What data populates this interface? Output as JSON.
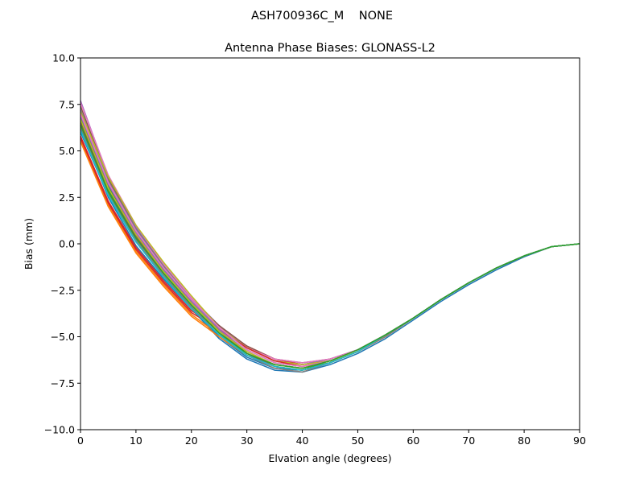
{
  "figure": {
    "suptitle": "ASH700936C_M    NONE"
  },
  "chart_data": {
    "type": "line",
    "title": "Antenna Phase Biases: GLONASS-L2",
    "xlabel": "Elvation angle (degrees)",
    "ylabel": "Bias (mm)",
    "xlim": [
      0,
      90
    ],
    "ylim": [
      -10,
      10
    ],
    "xticks": [
      0,
      10,
      20,
      30,
      40,
      50,
      60,
      70,
      80,
      90
    ],
    "yticks": [
      -10.0,
      -7.5,
      -5.0,
      -2.5,
      0.0,
      2.5,
      5.0,
      7.5,
      10.0
    ],
    "ytick_labels": [
      "−10.0",
      "−7.5",
      "−5.0",
      "−2.5",
      "0.0",
      "2.5",
      "5.0",
      "7.5",
      "10.0"
    ],
    "grid": false,
    "legend": "none",
    "x": [
      0,
      5,
      10,
      15,
      20,
      25,
      30,
      35,
      40,
      45,
      50,
      55,
      60,
      65,
      70,
      75,
      80,
      85,
      90
    ],
    "series": [
      {
        "color": "#1f77b4",
        "values": [
          6.2,
          2.5,
          -0.1,
          -1.9,
          -3.5,
          -5.1,
          -6.2,
          -6.8,
          -6.9,
          -6.5,
          -5.9,
          -5.1,
          -4.1,
          -3.1,
          -2.2,
          -1.4,
          -0.7,
          -0.15,
          0.0
        ]
      },
      {
        "color": "#ff7f0e",
        "values": [
          5.6,
          2.1,
          -0.4,
          -2.2,
          -3.8,
          -4.9,
          -5.9,
          -6.5,
          -6.7,
          -6.4,
          -5.8,
          -5.0,
          -4.0,
          -3.0,
          -2.1,
          -1.3,
          -0.65,
          -0.15,
          0.0
        ]
      },
      {
        "color": "#2ca02c",
        "values": [
          6.6,
          2.9,
          0.4,
          -1.5,
          -3.2,
          -4.7,
          -5.8,
          -6.5,
          -6.7,
          -6.4,
          -5.8,
          -4.9,
          -4.0,
          -3.0,
          -2.1,
          -1.3,
          -0.65,
          -0.15,
          0.0
        ]
      },
      {
        "color": "#d62728",
        "values": [
          5.8,
          2.3,
          -0.2,
          -2.0,
          -3.6,
          -4.5,
          -5.5,
          -6.2,
          -6.5,
          -6.3,
          -5.8,
          -4.9,
          -4.0,
          -3.0,
          -2.1,
          -1.3,
          -0.65,
          -0.15,
          0.0
        ]
      },
      {
        "color": "#9467bd",
        "values": [
          7.7,
          3.6,
          0.9,
          -1.1,
          -2.9,
          -4.4,
          -5.6,
          -6.3,
          -6.5,
          -6.2,
          -5.7,
          -4.9,
          -4.0,
          -3.0,
          -2.1,
          -1.3,
          -0.65,
          -0.15,
          0.0
        ]
      },
      {
        "color": "#8c564b",
        "values": [
          7.4,
          3.5,
          0.8,
          -1.2,
          -3.0,
          -4.4,
          -5.5,
          -6.2,
          -6.4,
          -6.2,
          -5.7,
          -4.9,
          -4.0,
          -3.0,
          -2.1,
          -1.3,
          -0.65,
          -0.15,
          0.0
        ]
      },
      {
        "color": "#e377c2",
        "values": [
          7.6,
          3.7,
          1.0,
          -1.1,
          -2.9,
          -4.5,
          -5.6,
          -6.2,
          -6.4,
          -6.2,
          -5.7,
          -4.9,
          -4.0,
          -3.0,
          -2.1,
          -1.3,
          -0.65,
          -0.15,
          0.0
        ]
      },
      {
        "color": "#7f7f7f",
        "values": [
          7.2,
          3.4,
          0.8,
          -1.2,
          -3.0,
          -4.5,
          -5.7,
          -6.4,
          -6.6,
          -6.3,
          -5.8,
          -4.9,
          -4.0,
          -3.0,
          -2.1,
          -1.3,
          -0.65,
          -0.15,
          0.0
        ]
      },
      {
        "color": "#bcbd22",
        "values": [
          7.1,
          3.6,
          1.0,
          -1.0,
          -2.8,
          -4.5,
          -5.6,
          -6.3,
          -6.5,
          -6.3,
          -5.8,
          -4.9,
          -4.0,
          -3.0,
          -2.1,
          -1.3,
          -0.65,
          -0.15,
          0.0
        ]
      },
      {
        "color": "#17becf",
        "values": [
          6.4,
          2.8,
          0.3,
          -1.6,
          -3.3,
          -4.8,
          -6.0,
          -6.6,
          -6.8,
          -6.4,
          -5.8,
          -4.9,
          -4.0,
          -3.0,
          -2.1,
          -1.3,
          -0.65,
          -0.15,
          0.0
        ]
      },
      {
        "color": "#1f77b4",
        "values": [
          6.0,
          2.6,
          0.1,
          -1.8,
          -3.4,
          -5.0,
          -6.1,
          -6.7,
          -6.8,
          -6.4,
          -5.8,
          -5.0,
          -4.0,
          -3.0,
          -2.1,
          -1.3,
          -0.65,
          -0.15,
          0.0
        ]
      },
      {
        "color": "#ff7f0e",
        "values": [
          5.5,
          2.0,
          -0.5,
          -2.3,
          -3.9,
          -5.0,
          -6.0,
          -6.6,
          -6.8,
          -6.4,
          -5.8,
          -5.0,
          -4.0,
          -3.0,
          -2.1,
          -1.3,
          -0.65,
          -0.15,
          0.0
        ]
      },
      {
        "color": "#2ca02c",
        "values": [
          6.8,
          3.1,
          0.5,
          -1.4,
          -3.1,
          -4.6,
          -5.9,
          -6.6,
          -6.8,
          -6.4,
          -5.8,
          -4.9,
          -4.0,
          -3.0,
          -2.1,
          -1.3,
          -0.65,
          -0.15,
          0.0
        ]
      },
      {
        "color": "#d62728",
        "values": [
          5.7,
          2.2,
          -0.3,
          -2.1,
          -3.7,
          -4.6,
          -5.6,
          -6.3,
          -6.6,
          -6.3,
          -5.8,
          -4.9,
          -4.0,
          -3.0,
          -2.1,
          -1.3,
          -0.65,
          -0.15,
          0.0
        ]
      },
      {
        "color": "#9467bd",
        "values": [
          6.9,
          3.2,
          0.6,
          -1.4,
          -3.1,
          -4.6,
          -5.8,
          -6.5,
          -6.7,
          -6.3,
          -5.8,
          -4.9,
          -4.0,
          -3.0,
          -2.1,
          -1.3,
          -0.65,
          -0.15,
          0.0
        ]
      },
      {
        "color": "#8c564b",
        "values": [
          6.5,
          3.0,
          0.4,
          -1.5,
          -3.2,
          -4.7,
          -5.9,
          -6.6,
          -6.8,
          -6.4,
          -5.8,
          -4.9,
          -4.0,
          -3.0,
          -2.1,
          -1.3,
          -0.65,
          -0.15,
          0.0
        ]
      },
      {
        "color": "#e377c2",
        "values": [
          7.0,
          3.3,
          0.7,
          -1.3,
          -3.0,
          -4.5,
          -5.7,
          -6.4,
          -6.6,
          -6.3,
          -5.8,
          -4.9,
          -4.0,
          -3.0,
          -2.1,
          -1.3,
          -0.65,
          -0.15,
          0.0
        ]
      },
      {
        "color": "#7f7f7f",
        "values": [
          6.3,
          2.7,
          0.2,
          -1.7,
          -3.4,
          -4.9,
          -6.0,
          -6.7,
          -6.9,
          -6.4,
          -5.8,
          -5.0,
          -4.0,
          -3.0,
          -2.1,
          -1.3,
          -0.65,
          -0.15,
          0.0
        ]
      },
      {
        "color": "#bcbd22",
        "values": [
          6.7,
          3.0,
          0.5,
          -1.5,
          -3.2,
          -4.7,
          -5.8,
          -6.5,
          -6.7,
          -6.3,
          -5.8,
          -4.9,
          -4.0,
          -3.0,
          -2.1,
          -1.3,
          -0.65,
          -0.15,
          0.0
        ]
      },
      {
        "color": "#17becf",
        "values": [
          6.1,
          2.6,
          0.1,
          -1.8,
          -3.5,
          -4.9,
          -6.0,
          -6.6,
          -6.8,
          -6.4,
          -5.8,
          -4.9,
          -4.0,
          -3.0,
          -2.1,
          -1.3,
          -0.65,
          -0.15,
          0.0
        ]
      },
      {
        "color": "#2ca02c",
        "values": [
          6.4,
          2.8,
          0.3,
          -1.6,
          -3.3,
          -4.8,
          -5.9,
          -6.5,
          -6.7,
          -6.3,
          -5.7,
          -4.9,
          -4.0,
          -3.0,
          -2.1,
          -1.3,
          -0.65,
          -0.15,
          0.0
        ]
      }
    ]
  }
}
